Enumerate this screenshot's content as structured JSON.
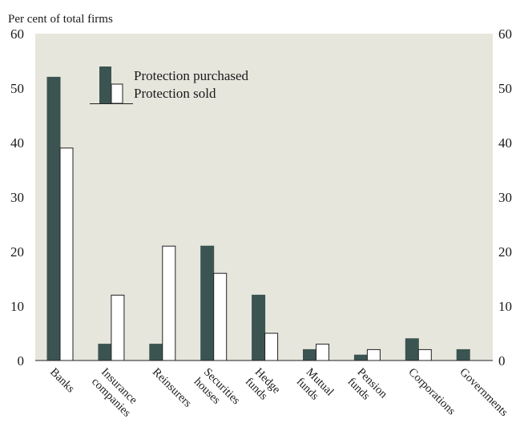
{
  "chart_data": {
    "type": "bar",
    "ylabel": "Per cent of total firms",
    "ylim": [
      0,
      60
    ],
    "yticks": [
      0,
      10,
      20,
      30,
      40,
      50,
      60
    ],
    "grid": false,
    "legend_position": "top-left",
    "categories": [
      "Banks",
      "Insurance companies",
      "Reinsurers",
      "Securities houses",
      "Hedge funds",
      "Mutual funds",
      "Pension funds",
      "Corporations",
      "Governments"
    ],
    "category_lines": [
      [
        "Banks"
      ],
      [
        "Insurance",
        "companies"
      ],
      [
        "Reinsurers"
      ],
      [
        "Securities",
        "houses"
      ],
      [
        "Hedge",
        "funds"
      ],
      [
        "Mutual",
        "funds"
      ],
      [
        "Pension",
        "funds"
      ],
      [
        "Corporations"
      ],
      [
        "Governments"
      ]
    ],
    "series": [
      {
        "name": "Protection purchased",
        "values": [
          52,
          3,
          3,
          21,
          12,
          2,
          1,
          4,
          2
        ]
      },
      {
        "name": "Protection sold",
        "values": [
          39,
          12,
          21,
          16,
          5,
          3,
          2,
          2,
          0
        ]
      }
    ]
  },
  "colors": {
    "background": "#e6e6dd",
    "purchased": "#3b5451",
    "sold": "#ffffff",
    "axis": "#222222"
  }
}
